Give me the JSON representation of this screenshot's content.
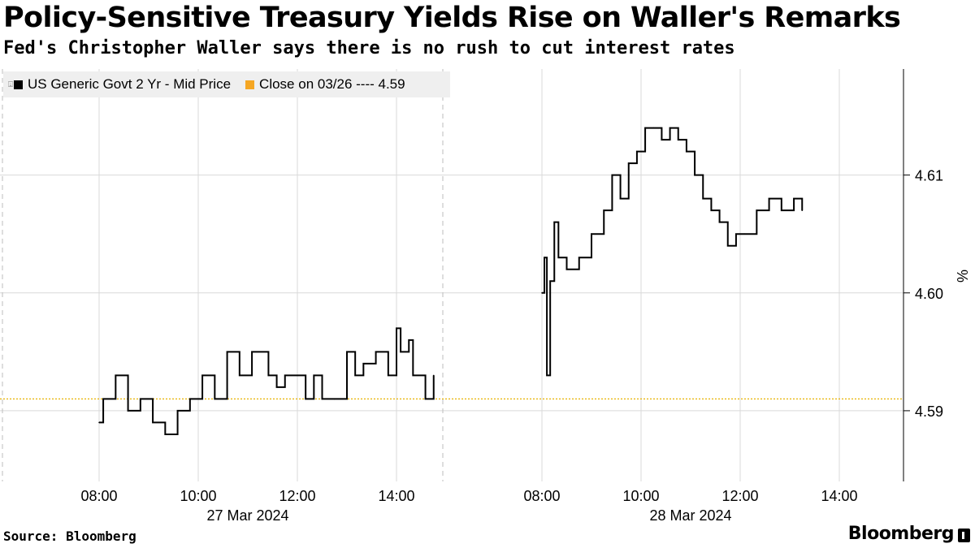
{
  "header": {
    "title": "Policy-Sensitive Treasury Yields Rise on Waller's Remarks",
    "subtitle": "Fed's Christopher Waller says there is no rush to cut interest rates"
  },
  "legend": {
    "items": [
      {
        "label": "US Generic Govt 2 Yr - Mid Price",
        "color": "#000000"
      },
      {
        "label": "Close on 03/26 ---- 4.59",
        "color": "#f5a623"
      }
    ]
  },
  "footer": {
    "source": "Source: Bloomberg",
    "brand": "Bloomberg"
  },
  "chart_data": {
    "type": "line",
    "ylabel": "%",
    "ylim": [
      4.584,
      4.619
    ],
    "yticks": [
      4.59,
      4.6,
      4.61
    ],
    "ytick_labels": [
      "4.59",
      "4.60",
      "4.61"
    ],
    "grid": true,
    "legend_position": "top-left",
    "reference_line": {
      "value": 4.591,
      "color": "#e8b200",
      "label": "Close on 03/26 ---- 4.59"
    },
    "x_groups": [
      {
        "date_label": "27 Mar 2024",
        "ticks": [
          "08:00",
          "10:00",
          "12:00",
          "14:00"
        ]
      },
      {
        "date_label": "28 Mar 2024",
        "ticks": [
          "08:00",
          "10:00",
          "12:00",
          "14:00"
        ]
      }
    ],
    "series": [
      {
        "name": "US Generic Govt 2 Yr - Mid Price",
        "color": "#000000",
        "segments": [
          {
            "date": "2024-03-27",
            "times": [
              "08:00",
              "08:05",
              "08:20",
              "08:35",
              "08:50",
              "09:05",
              "09:20",
              "09:35",
              "09:50",
              "10:05",
              "10:20",
              "10:35",
              "10:50",
              "11:05",
              "11:25",
              "11:35",
              "11:45",
              "12:00",
              "12:10",
              "12:20",
              "12:30",
              "12:45",
              "13:00",
              "13:10",
              "13:20",
              "13:35",
              "13:50",
              "14:00",
              "14:05",
              "14:15",
              "14:20",
              "14:35",
              "14:45"
            ],
            "values": [
              4.589,
              4.591,
              4.593,
              4.59,
              4.591,
              4.589,
              4.588,
              4.59,
              4.591,
              4.593,
              4.591,
              4.595,
              4.593,
              4.595,
              4.593,
              4.592,
              4.593,
              4.593,
              4.591,
              4.593,
              4.591,
              4.591,
              4.595,
              4.593,
              4.594,
              4.595,
              4.593,
              4.597,
              4.595,
              4.596,
              4.593,
              4.591,
              4.593
            ]
          },
          {
            "date": "2024-03-28",
            "times": [
              "08:00",
              "08:03",
              "08:06",
              "08:10",
              "08:15",
              "08:20",
              "08:30",
              "08:45",
              "09:00",
              "09:15",
              "09:25",
              "09:35",
              "09:45",
              "09:55",
              "10:05",
              "10:15",
              "10:25",
              "10:35",
              "10:45",
              "10:55",
              "11:05",
              "11:15",
              "11:25",
              "11:35",
              "11:45",
              "11:55",
              "12:05",
              "12:20",
              "12:35",
              "12:50",
              "13:05",
              "13:15"
            ],
            "values": [
              4.6,
              4.603,
              4.593,
              4.601,
              4.606,
              4.603,
              4.602,
              4.603,
              4.605,
              4.607,
              4.61,
              4.608,
              4.611,
              4.612,
              4.614,
              4.614,
              4.613,
              4.614,
              4.613,
              4.612,
              4.61,
              4.608,
              4.607,
              4.606,
              4.604,
              4.605,
              4.605,
              4.607,
              4.608,
              4.607,
              4.608,
              4.607
            ]
          }
        ]
      }
    ]
  }
}
